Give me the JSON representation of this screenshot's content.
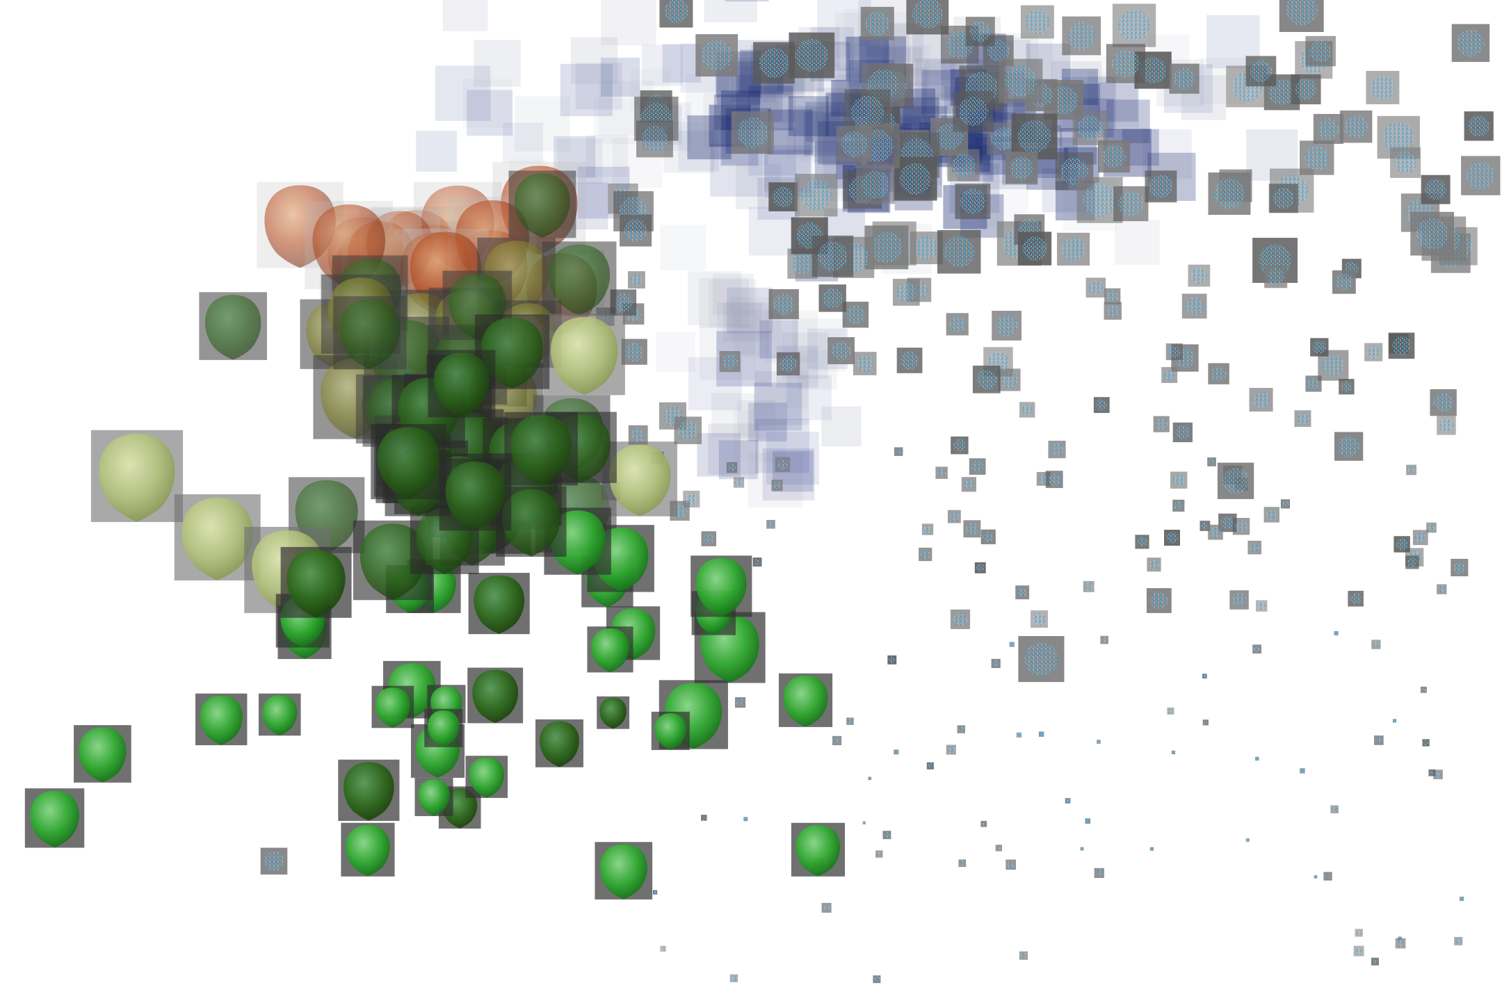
{
  "scene": {
    "background_color": "#ffffff",
    "description_free": true
  },
  "clusters": [
    {
      "name": "orange-glyph-cluster",
      "glyph": "smooth-blob",
      "base_color": "#b5461a",
      "tile_color": "#8c8c8c",
      "count": 16
    },
    {
      "name": "olive-glyph-cluster",
      "glyph": "smooth-blob",
      "base_color": "#8a8a2a",
      "tile_color": "#6e6e6e",
      "count": 26
    },
    {
      "name": "green-glyph-cluster",
      "glyph": "smooth-blob",
      "base_color": "#2fae2f",
      "tile_color": "#4a4a4a",
      "count": 60
    },
    {
      "name": "blue-texture-cluster",
      "glyph": "noise-square",
      "base_color": "#2a3f8f",
      "tile_color": "#8a8a8a",
      "accent_color": "#4fb3e8",
      "count": 330
    }
  ],
  "icons": {
    "blob_icon": "blob-icon",
    "noise_icon": "noise-square-icon"
  }
}
